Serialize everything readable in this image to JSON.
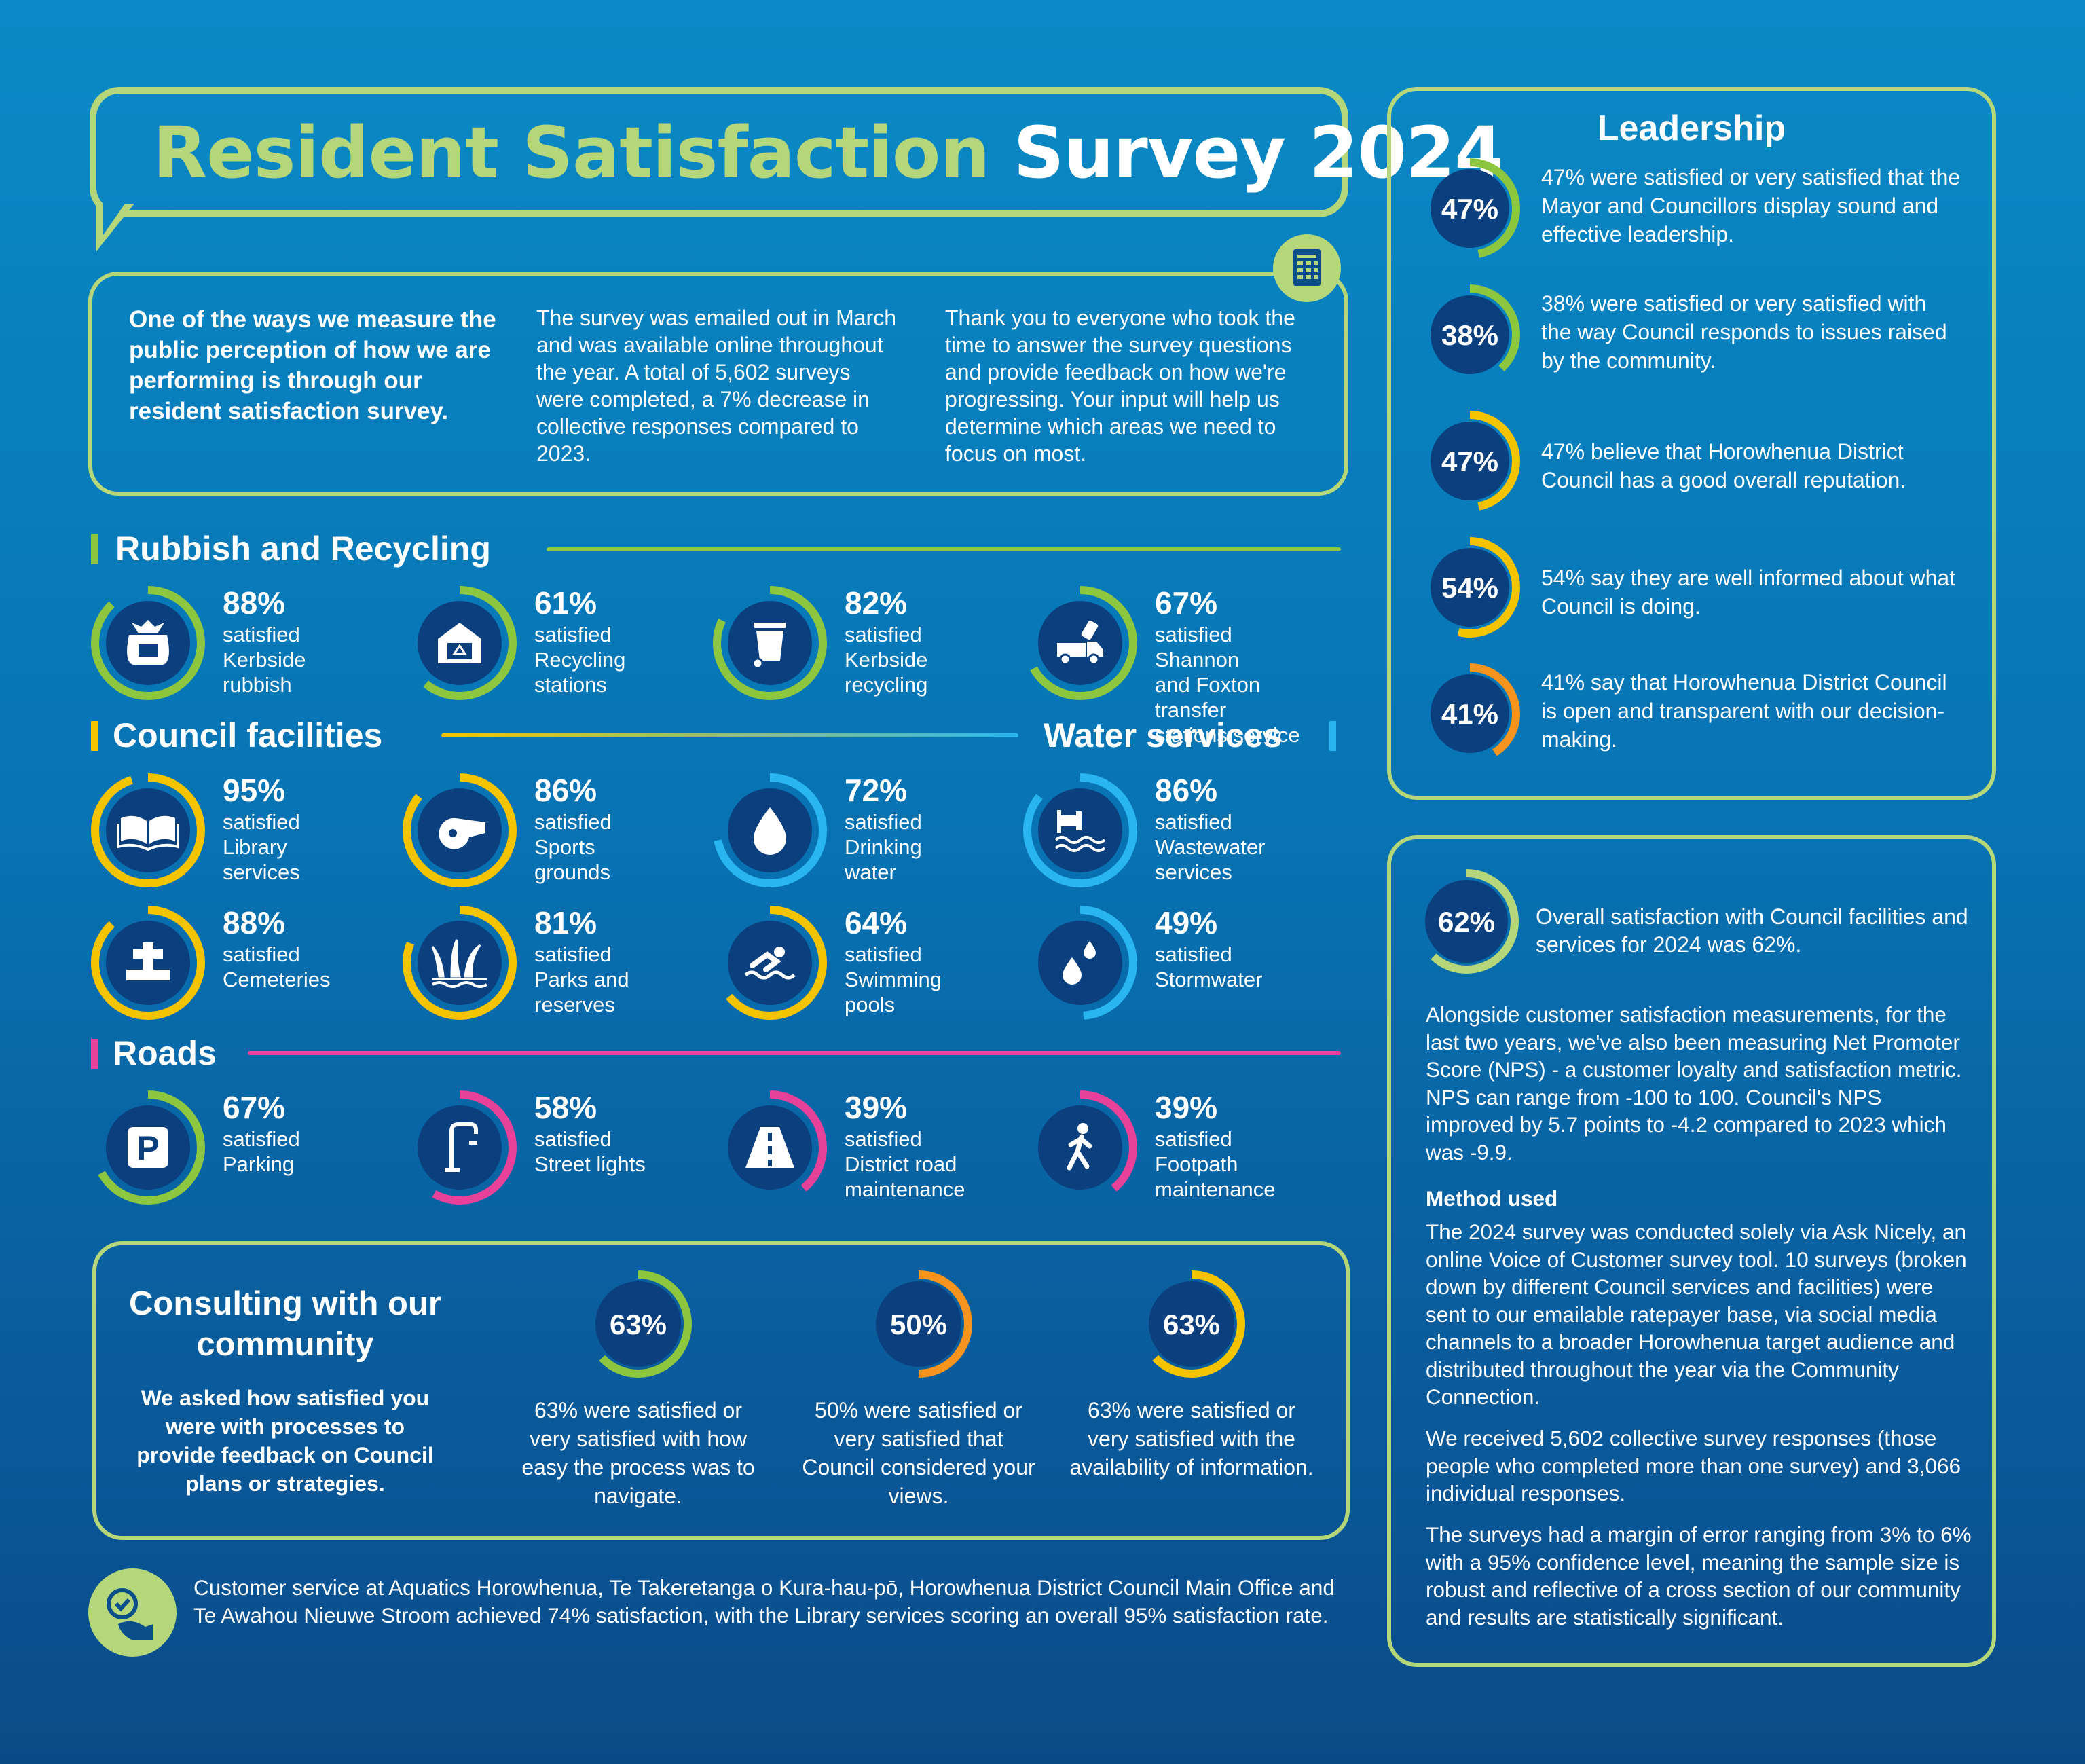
{
  "title": {
    "part1": "Resident Satisfaction",
    "part2": "Survey 2024"
  },
  "intro": {
    "col1": "One of the ways we measure the public perception of how we are performing is through our resident satisfaction survey.",
    "col2": "The survey was emailed out in March and was available online throughout the year. A total of 5,602 surveys were completed, a 7% decrease in collective responses compared to 2023.",
    "col3": "Thank you to everyone who took the time to answer the survey questions and provide feedback on how we're progressing. Your input will help us determine which areas we need to focus on most."
  },
  "sections": {
    "rubbish": "Rubbish and Recycling",
    "council": "Council facilities",
    "water": "Water services",
    "roads": "Roads"
  },
  "stats": {
    "kerbside_rubbish": {
      "pct": "88%",
      "label": "satisfied\nKerbside\nrubbish",
      "value": 88,
      "color": "#8dc63f",
      "icon": "rubbish-bag-icon"
    },
    "recycling_stations": {
      "pct": "61%",
      "label": "satisfied\nRecycling\nstations",
      "value": 61,
      "color": "#8dc63f",
      "icon": "recycling-station-icon"
    },
    "kerbside_recycling": {
      "pct": "82%",
      "label": "satisfied\nKerbside\nrecycling",
      "value": 82,
      "color": "#8dc63f",
      "icon": "wheelie-bin-icon"
    },
    "transfer_stations": {
      "pct": "67%",
      "label": "satisfied Shannon\nand Foxton transfer\nstations service",
      "value": 67,
      "color": "#8dc63f",
      "icon": "truck-icon"
    },
    "library": {
      "pct": "95%",
      "label": "satisfied\nLibrary\nservices",
      "value": 95,
      "color": "#f5c400",
      "icon": "book-icon"
    },
    "sports": {
      "pct": "86%",
      "label": "satisfied\nSports\ngrounds",
      "value": 86,
      "color": "#f5c400",
      "icon": "whistle-icon"
    },
    "drinking": {
      "pct": "72%",
      "label": "satisfied\nDrinking\nwater",
      "value": 72,
      "color": "#29b6f0",
      "icon": "water-drop-icon"
    },
    "wastewater": {
      "pct": "86%",
      "label": "satisfied\nWastewater\nservices",
      "value": 86,
      "color": "#29b6f0",
      "icon": "wastewater-pipe-icon"
    },
    "cemeteries": {
      "pct": "88%",
      "label": "satisfied\nCemeteries",
      "value": 88,
      "color": "#f5c400",
      "icon": "headstone-icon"
    },
    "parks": {
      "pct": "81%",
      "label": "satisfied\nParks and\nreserves",
      "value": 81,
      "color": "#f5c400",
      "icon": "plants-icon"
    },
    "pools": {
      "pct": "64%",
      "label": "satisfied\nSwimming\npools",
      "value": 64,
      "color": "#f5c400",
      "icon": "swimmer-icon"
    },
    "stormwater": {
      "pct": "49%",
      "label": "satisfied\nStormwater",
      "value": 49,
      "color": "#29b6f0",
      "icon": "rain-drops-icon"
    },
    "parking": {
      "pct": "67%",
      "label": "satisfied\nParking",
      "value": 67,
      "color": "#8dc63f",
      "icon": "parking-icon"
    },
    "streetlights": {
      "pct": "58%",
      "label": "satisfied\nStreet lights",
      "value": 58,
      "color": "#e8419a",
      "icon": "street-light-icon"
    },
    "road_maint": {
      "pct": "39%",
      "label": "satisfied\nDistrict road\nmaintenance",
      "value": 39,
      "color": "#e8419a",
      "icon": "road-icon"
    },
    "footpath": {
      "pct": "39%",
      "label": "satisfied\nFootpath\nmaintenance",
      "value": 39,
      "color": "#e8419a",
      "icon": "pedestrian-icon"
    }
  },
  "leadership": {
    "title": "Leadership",
    "items": [
      {
        "pct": "47%",
        "value": 47,
        "color": "#8dc63f",
        "text": "47% were satisfied or very satisfied that the Mayor and Councillors display sound and effective leadership."
      },
      {
        "pct": "38%",
        "value": 38,
        "color": "#8dc63f",
        "text": "38% were satisfied or very satisfied with the way Council responds to issues raised by the community."
      },
      {
        "pct": "47%",
        "value": 47,
        "color": "#f5c400",
        "text": "47% believe that Horowhenua District Council has a good overall reputation."
      },
      {
        "pct": "54%",
        "value": 54,
        "color": "#f5c400",
        "text": "54% say they are well informed about what Council is doing."
      },
      {
        "pct": "41%",
        "value": 41,
        "color": "#f7941d",
        "text": "41% say that Horowhenua District Council is open and transparent with our decision-making."
      }
    ]
  },
  "overall": {
    "pct": "62%",
    "value": 62,
    "color": "#b5d77a",
    "text": "Overall satisfaction with Council facilities and services for 2024 was 62%.",
    "nps": "Alongside customer satisfaction measurements, for the last two years, we've also been measuring Net Promoter Score (NPS) - a customer loyalty and satisfaction metric. NPS can range  from -100 to 100. Council's NPS improved by 5.7 points to -4.2 compared to 2023 which was -9.9.",
    "method_title": "Method used",
    "method1": "The 2024 survey was conducted solely via Ask Nicely, an online Voice of Customer survey tool. 10 surveys (broken down by different Council services and facilities) were sent to our emailable ratepayer base, via social media channels to a broader Horowhenua target audience and distributed throughout the year via the Community Connection.",
    "method2": "We received 5,602 collective survey responses (those people who completed more than one survey) and 3,066 individual responses.",
    "method3": "The surveys had a margin of error ranging from 3% to 6% with a 95% confidence level, meaning the sample size is robust and reflective of a cross section of our community and results are statistically significant."
  },
  "consulting": {
    "title": "Consulting with our community",
    "subtitle": "We asked how satisfied you were with processes to provide feedback on Council plans or strategies.",
    "items": [
      {
        "pct": "63%",
        "value": 63,
        "color": "#8dc63f",
        "text": "63% were satisfied or very satisfied with how easy the process was to navigate."
      },
      {
        "pct": "50%",
        "value": 50,
        "color": "#f7941d",
        "text": "50% were satisfied or very satisfied that Council considered your views."
      },
      {
        "pct": "63%",
        "value": 63,
        "color": "#f5c400",
        "text": "63% were satisfied or very satisfied with the availability of information."
      }
    ]
  },
  "footer": {
    "text": "Customer service at Aquatics Horowhenua, Te Takeretanga o Kura-hau-pō, Horowhenua District Council Main Office and Te Awahou Nieuwe Stroom achieved 74% satisfaction, with the Library services scoring an overall 95% satisfaction rate."
  }
}
